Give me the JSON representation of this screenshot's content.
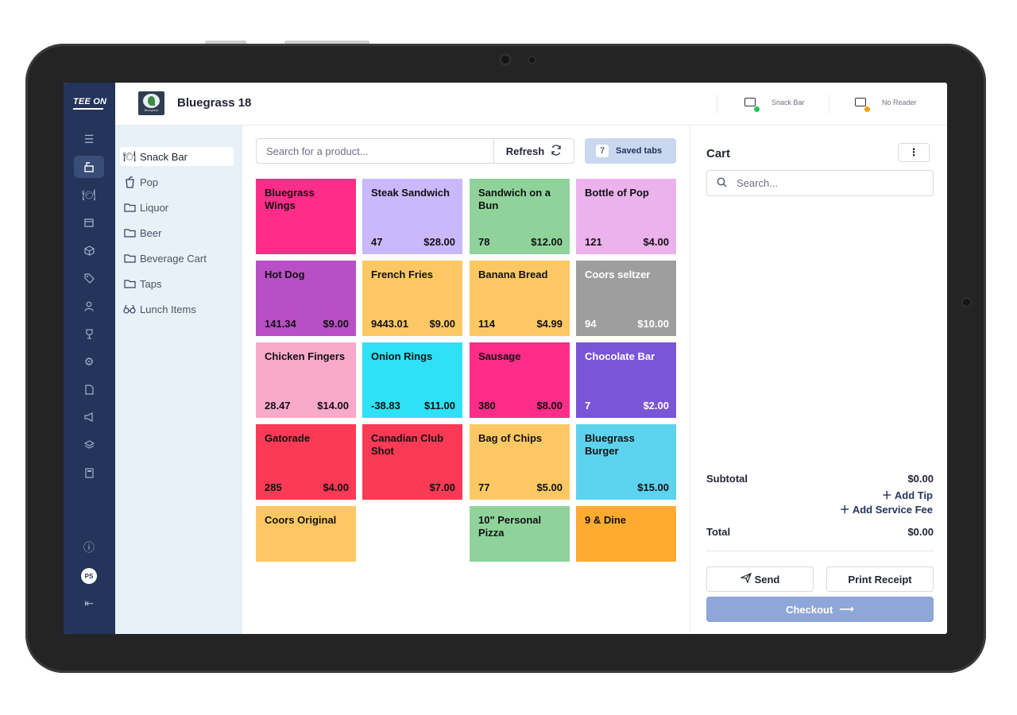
{
  "app": {
    "logo": "TEE ON",
    "course_logo_text": "Bluegrass",
    "course_name": "Bluegrass 18",
    "user_initials": "PS"
  },
  "header": {
    "register_label": "Snack Bar",
    "register_status_color": "#22c55e",
    "reader_label": "No Reader",
    "reader_status_color": "#f59e0b"
  },
  "categories": [
    {
      "label": "Snack Bar",
      "icon": "dining-icon",
      "active": true
    },
    {
      "label": "Pop",
      "icon": "cup-icon"
    },
    {
      "label": "Liquor",
      "icon": "folder-icon"
    },
    {
      "label": "Beer",
      "icon": "folder-icon"
    },
    {
      "label": "Beverage Cart",
      "icon": "folder-icon"
    },
    {
      "label": "Taps",
      "icon": "folder-icon"
    },
    {
      "label": "Lunch Items",
      "icon": "binoculars-icon"
    }
  ],
  "toolbar": {
    "search_placeholder": "Search for a product...",
    "refresh_label": "Refresh",
    "saved_count": "7",
    "saved_label": "Saved tabs"
  },
  "products": [
    {
      "name": "Bluegrass Wings",
      "qty": "",
      "price": "",
      "color": "#ff2d8a"
    },
    {
      "name": "Steak Sandwich",
      "qty": "47",
      "price": "$28.00",
      "color": "#c9b8fb"
    },
    {
      "name": "Sandwich on a Bun",
      "qty": "78",
      "price": "$12.00",
      "color": "#8fd39b"
    },
    {
      "name": "Bottle of Pop",
      "qty": "121",
      "price": "$4.00",
      "color": "#ecb2ec"
    },
    {
      "name": "Hot Dog",
      "qty": "141.34",
      "price": "$9.00",
      "color": "#b94fc6"
    },
    {
      "name": "French Fries",
      "qty": "9443.01",
      "price": "$9.00",
      "color": "#fdc863"
    },
    {
      "name": "Banana Bread",
      "qty": "114",
      "price": "$4.99",
      "color": "#fdc863"
    },
    {
      "name": "Coors seltzer",
      "qty": "94",
      "price": "$10.00",
      "color": "#9e9e9e"
    },
    {
      "name": "Chicken Fingers",
      "qty": "28.47",
      "price": "$14.00",
      "color": "#f9aac8"
    },
    {
      "name": "Onion Rings",
      "qty": "-38.83",
      "price": "$11.00",
      "color": "#2ee1f4"
    },
    {
      "name": "Sausage",
      "qty": "380",
      "price": "$8.00",
      "color": "#ff2d8a"
    },
    {
      "name": "Chocolate Bar",
      "qty": "7",
      "price": "$2.00",
      "color": "#7a55d6"
    },
    {
      "name": "Gatorade",
      "qty": "285",
      "price": "$4.00",
      "color": "#fd3a55"
    },
    {
      "name": "Canadian Club Shot",
      "qty": "",
      "price": "$7.00",
      "color": "#fd3a55"
    },
    {
      "name": "Bag of Chips",
      "qty": "77",
      "price": "$5.00",
      "color": "#fdc863"
    },
    {
      "name": "Bluegrass Burger",
      "qty": "",
      "price": "$15.00",
      "color": "#5dd3ef"
    },
    {
      "name": "Coors Original",
      "qty": "",
      "price": "",
      "color": "#fdc863"
    },
    {
      "name": "10\" Personal Pizza",
      "qty": "",
      "price": "",
      "color": "#8fd39b"
    },
    {
      "name": "9 & Dine",
      "qty": "",
      "price": "",
      "color": "#feab2f"
    }
  ],
  "cart": {
    "title": "Cart",
    "menu_glyph": "⋮",
    "search_placeholder": "Search...",
    "subtotal_label": "Subtotal",
    "subtotal_value": "$0.00",
    "add_tip": "Add Tip",
    "add_service_fee": "Add Service Fee",
    "total_label": "Total",
    "total_value": "$0.00",
    "send_label": "Send",
    "print_label": "Print Receipt",
    "checkout_label": "Checkout"
  }
}
